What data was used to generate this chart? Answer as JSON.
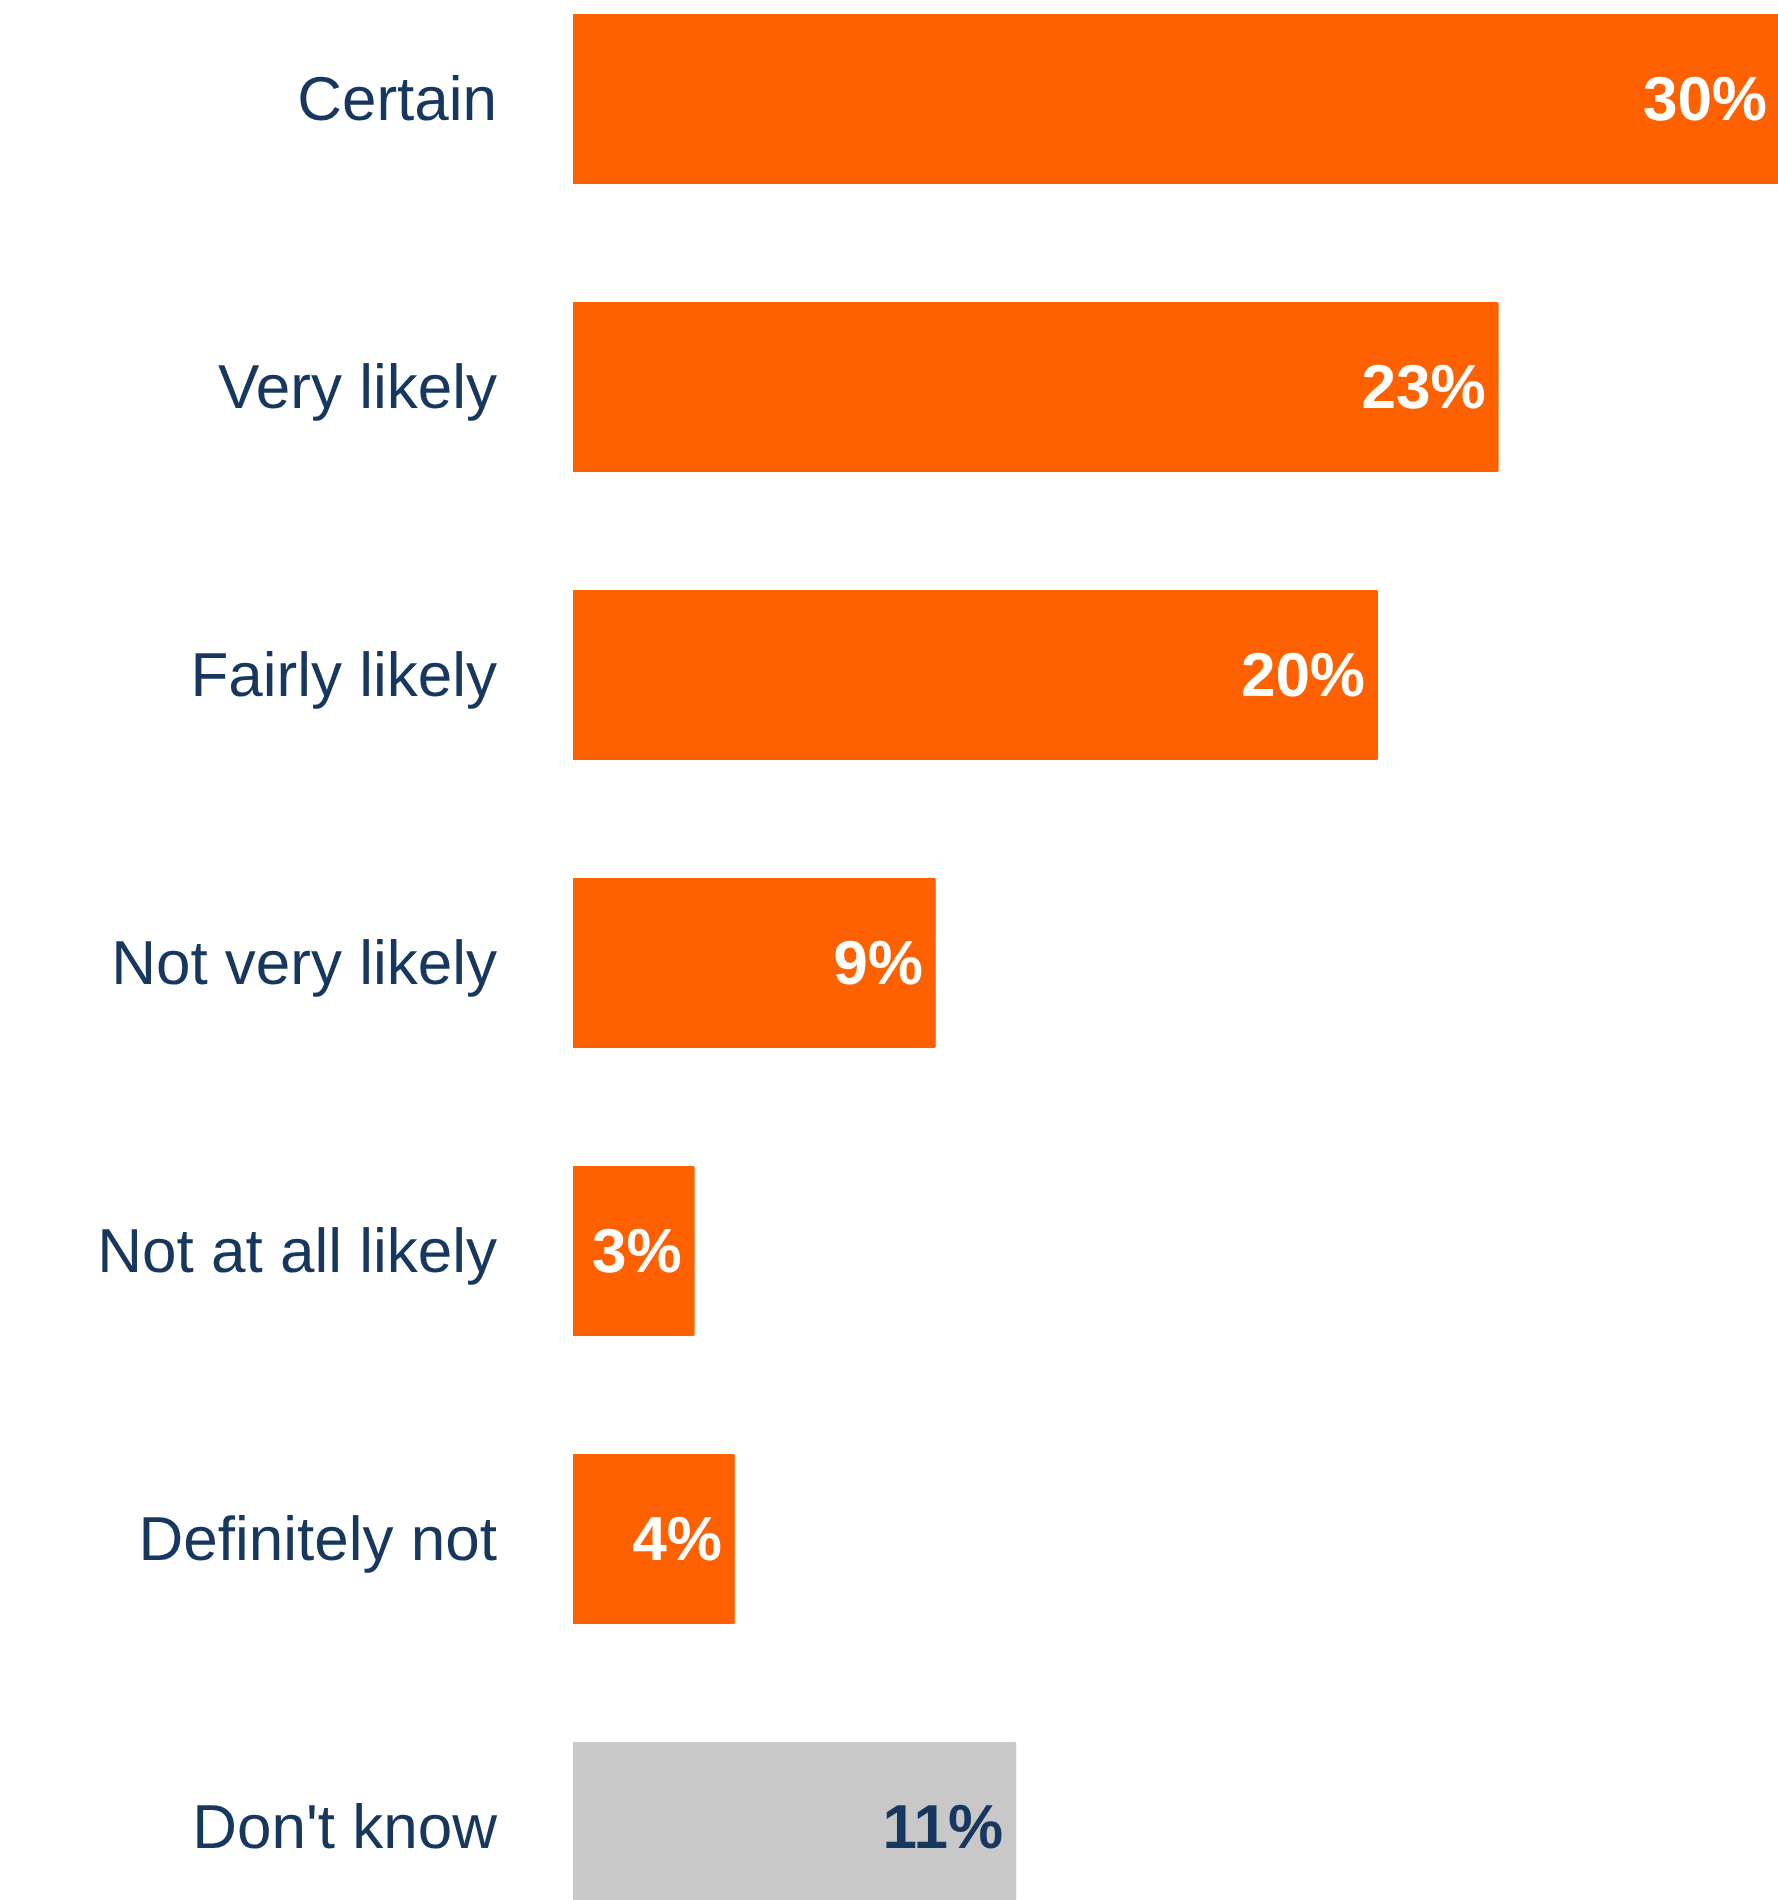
{
  "chart_data": {
    "type": "bar",
    "orientation": "horizontal",
    "categories": [
      "Certain",
      "Very likely",
      "Fairly likely",
      "Not very likely",
      "Not at all likely",
      "Definitely not",
      "Don't know"
    ],
    "values": [
      30,
      23,
      20,
      9,
      3,
      4,
      11
    ],
    "colors": [
      "#ff6000",
      "#ff6000",
      "#ff6000",
      "#ff6000",
      "#ff6000",
      "#ff6000",
      "#c8c8c8"
    ],
    "data_labels": true,
    "value_labels": [
      "30%",
      "23%",
      "20%",
      "9%",
      "3%",
      "4%",
      "11%"
    ],
    "grid": false
  }
}
